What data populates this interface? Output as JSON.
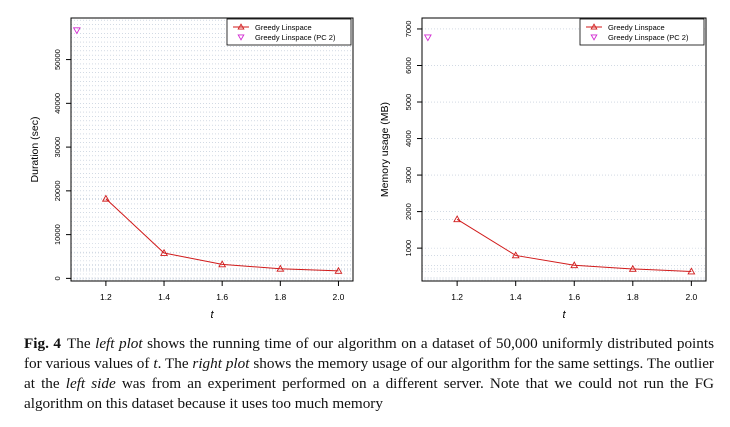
{
  "chart_data": [
    {
      "type": "line",
      "xlabel": "t",
      "ylabel": "Duration (sec)",
      "x": [
        1.2,
        1.4,
        1.6,
        1.8,
        2.0
      ],
      "x_ticks": [
        "1.2",
        "1.4",
        "1.6",
        "1.8",
        "2.0"
      ],
      "y_ticks": [
        "0",
        "10000",
        "20000",
        "30000",
        "40000",
        "50000"
      ],
      "xlim": [
        1.08,
        2.05
      ],
      "ylim": [
        -600,
        59500
      ],
      "grid": true,
      "legend_position": "top-right",
      "series": [
        {
          "name": "Greedy Linspace",
          "values": [
            18200,
            5800,
            3200,
            2200,
            1700
          ],
          "color": "#d11a1a",
          "marker": "triangle-up",
          "line": true
        },
        {
          "name": "Greedy Linspace (PC 2)",
          "x": [
            1.1
          ],
          "values": [
            56700
          ],
          "color": "#d12ad1",
          "marker": "triangle-down",
          "line": false
        }
      ]
    },
    {
      "type": "line",
      "xlabel": "t",
      "ylabel": "Memory usage (MB)",
      "x": [
        1.2,
        1.4,
        1.6,
        1.8,
        2.0
      ],
      "x_ticks": [
        "1.2",
        "1.4",
        "1.6",
        "1.8",
        "2.0"
      ],
      "y_ticks": [
        "1000",
        "2000",
        "3000",
        "4000",
        "5000",
        "6000",
        "7000"
      ],
      "xlim": [
        1.08,
        2.05
      ],
      "ylim": [
        100,
        7300
      ],
      "grid": true,
      "legend_position": "top-right",
      "series": [
        {
          "name": "Greedy Linspace",
          "values": [
            1790,
            800,
            530,
            430,
            360
          ],
          "color": "#d11a1a",
          "marker": "triangle-up",
          "line": true
        },
        {
          "name": "Greedy Linspace (PC 2)",
          "x": [
            1.1
          ],
          "values": [
            6770
          ],
          "color": "#d12ad1",
          "marker": "triangle-down",
          "line": false
        }
      ]
    }
  ],
  "caption": {
    "label": "Fig. 4",
    "parts": [
      {
        "text": "The ",
        "italic": false
      },
      {
        "text": "left plot",
        "italic": true
      },
      {
        "text": " shows the running time of our algorithm on a dataset of 50,000 uniformly distributed points for various values of ",
        "italic": false
      },
      {
        "text": "t",
        "italic": true
      },
      {
        "text": ". The ",
        "italic": false
      },
      {
        "text": "right plot",
        "italic": true
      },
      {
        "text": " shows the memory usage of our algorithm for the same settings. The outlier at the ",
        "italic": false
      },
      {
        "text": "left side",
        "italic": true
      },
      {
        "text": " was from an experiment performed on a different server. Note that we could not run the FG algorithm on this dataset because it uses too much memory",
        "italic": false
      }
    ]
  }
}
